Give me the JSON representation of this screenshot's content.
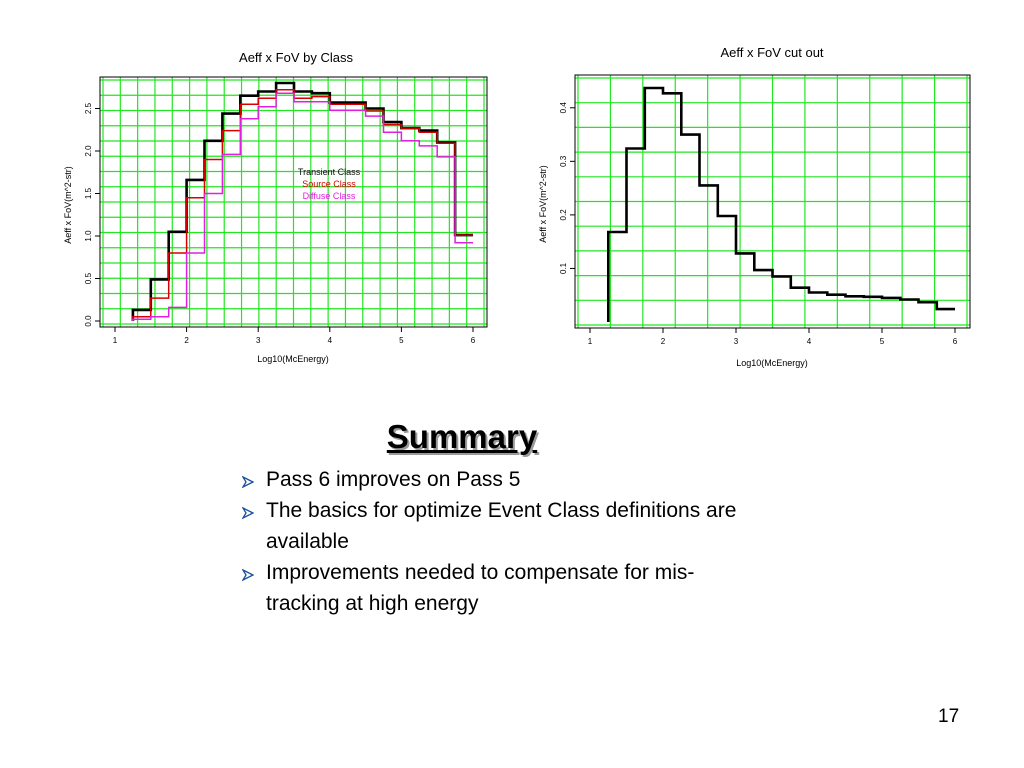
{
  "chart_data": [
    {
      "type": "line",
      "title": "Aeff x FoV by Class",
      "xlabel": "Log10(McEnergy)",
      "ylabel": "Aeff x FoV(m^2-str)",
      "xlim": [
        1,
        6
      ],
      "ylim": [
        0,
        2.8
      ],
      "xticks": [
        1,
        2,
        3,
        4,
        5,
        6
      ],
      "xtick_labels": [
        "1",
        "2",
        "3",
        "4",
        "5",
        "6"
      ],
      "yticks": [
        0,
        0.5,
        1,
        1.5,
        2,
        2.5
      ],
      "ytick_labels": [
        "0.0",
        "0.5",
        "1.0",
        "1.5",
        "2.0",
        "2.5"
      ],
      "grid": true,
      "legend_position": "center",
      "series": [
        {
          "name": "Transient Class",
          "color": "#000000",
          "x": [
            1.25,
            1.5,
            1.75,
            2.0,
            2.25,
            2.5,
            2.75,
            3.0,
            3.25,
            3.5,
            3.75,
            4.0,
            4.25,
            4.5,
            4.75,
            5.0,
            5.25,
            5.5,
            5.75
          ],
          "values": [
            0.13,
            0.49,
            1.05,
            1.66,
            2.12,
            2.44,
            2.65,
            2.7,
            2.8,
            2.7,
            2.68,
            2.57,
            2.57,
            2.5,
            2.34,
            2.27,
            2.24,
            2.1,
            1.01
          ]
        },
        {
          "name": "Source Class",
          "color": "#d60000",
          "x": [
            1.25,
            1.5,
            1.75,
            2.0,
            2.25,
            2.5,
            2.75,
            3.0,
            3.25,
            3.5,
            3.75,
            4.0,
            4.25,
            4.5,
            4.75,
            5.0,
            5.25,
            5.5,
            5.75
          ],
          "values": [
            0.05,
            0.27,
            0.8,
            1.45,
            1.9,
            2.24,
            2.55,
            2.62,
            2.72,
            2.62,
            2.64,
            2.55,
            2.55,
            2.47,
            2.31,
            2.27,
            2.22,
            2.09,
            1.01
          ]
        },
        {
          "name": "Diffuse Class",
          "color": "#e020e0",
          "x": [
            1.25,
            1.5,
            1.75,
            2.0,
            2.25,
            2.5,
            2.75,
            3.0,
            3.25,
            3.5,
            3.75,
            4.0,
            4.25,
            4.5,
            4.75,
            5.0,
            5.25,
            5.5,
            5.75
          ],
          "values": [
            0.02,
            0.05,
            0.16,
            0.8,
            1.5,
            1.96,
            2.38,
            2.52,
            2.68,
            2.58,
            2.58,
            2.48,
            2.48,
            2.41,
            2.22,
            2.12,
            2.06,
            1.93,
            0.92
          ]
        }
      ]
    },
    {
      "type": "line",
      "title": "Aeff x FoV cut out",
      "xlabel": "Log10(McEnergy)",
      "ylabel": "Aeff x FoV(m^2-str)",
      "xlim": [
        1,
        6
      ],
      "ylim": [
        0,
        0.45
      ],
      "xticks": [
        1,
        2,
        3,
        4,
        5,
        6
      ],
      "xtick_labels": [
        "1",
        "2",
        "3",
        "4",
        "5",
        "6"
      ],
      "yticks": [
        0.1,
        0.2,
        0.3,
        0.4
      ],
      "ytick_labels": [
        "0.1",
        "0.2",
        "0.3",
        "0.4"
      ],
      "grid": true,
      "series": [
        {
          "color": "#000000",
          "x": [
            1.25,
            1.5,
            1.75,
            2.0,
            2.25,
            2.5,
            2.75,
            3.0,
            3.25,
            3.5,
            3.75,
            4.0,
            4.25,
            4.5,
            4.75,
            5.0,
            5.25,
            5.5,
            5.75
          ],
          "values": [
            0.168,
            0.324,
            0.437,
            0.427,
            0.35,
            0.255,
            0.198,
            0.128,
            0.097,
            0.085,
            0.064,
            0.055,
            0.051,
            0.048,
            0.047,
            0.045,
            0.042,
            0.037,
            0.024
          ]
        }
      ]
    }
  ],
  "summary": {
    "title": "Summary",
    "bullets": [
      "Pass 6 improves on Pass 5",
      "The basics for optimize Event Class definitions are available",
      "Improvements needed to compensate for mis-tracking at high energy"
    ]
  },
  "page_number": "17",
  "colors": {
    "grid": "#22e622",
    "bullet": "#1a4fa0"
  }
}
